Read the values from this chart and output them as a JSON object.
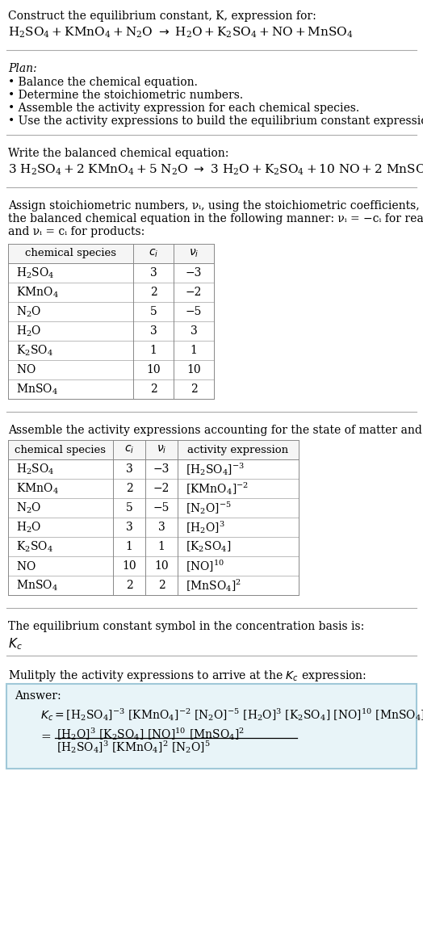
{
  "title_line1": "Construct the equilibrium constant, K, expression for:",
  "plan_title": "Plan:",
  "plan_items": [
    "• Balance the chemical equation.",
    "• Determine the stoichiometric numbers.",
    "• Assemble the activity expression for each chemical species.",
    "• Use the activity expressions to build the equilibrium constant expression."
  ],
  "balanced_label": "Write the balanced chemical equation:",
  "assign_label_parts": [
    "Assign stoichiometric numbers, νᵢ, using the stoichiometric coefficients, cᵢ, from",
    "the balanced chemical equation in the following manner: νᵢ = −cᵢ for reactants",
    "and νᵢ = cᵢ for products:"
  ],
  "table1_rows": [
    [
      "H₂SO₄",
      "3",
      "−3"
    ],
    [
      "KMnO₄",
      "2",
      "−2"
    ],
    [
      "N₂O",
      "5",
      "−5"
    ],
    [
      "H₂O",
      "3",
      "3"
    ],
    [
      "K₂SO₄",
      "1",
      "1"
    ],
    [
      "NO",
      "10",
      "10"
    ],
    [
      "MnSO₄",
      "2",
      "2"
    ]
  ],
  "assemble_label": "Assemble the activity expressions accounting for the state of matter and νᵢ:",
  "table2_rows": [
    [
      "H₂SO₄",
      "3",
      "−3",
      "[H₂SO₄]⁻³"
    ],
    [
      "KMnO₄",
      "2",
      "−2",
      "[KMnO₄]⁻²"
    ],
    [
      "N₂O",
      "5",
      "−5",
      "[N₂O]⁻⁵"
    ],
    [
      "H₂O",
      "3",
      "3",
      "[H₂O]³"
    ],
    [
      "K₂SO₄",
      "1",
      "1",
      "[K₂SO₄]"
    ],
    [
      "NO",
      "10",
      "10",
      "[NO]¹⁰"
    ],
    [
      "MnSO₄",
      "2",
      "2",
      "[MnSO₄]²"
    ]
  ],
  "kc_label": "The equilibrium constant symbol in the concentration basis is:",
  "multiply_label": "Mulitply the activity expressions to arrive at the Kᴄ expression:",
  "answer_label": "Answer:",
  "bg_color": "#ffffff",
  "answer_box_color": "#e8f4f8",
  "answer_box_border": "#a0c8d8",
  "text_color": "#000000",
  "table_border": "#888888",
  "table_row_border": "#bbbbbb",
  "hline_color": "#aaaaaa",
  "font_size": 10.0,
  "font_size_small": 9.0,
  "font_size_header": 9.5
}
